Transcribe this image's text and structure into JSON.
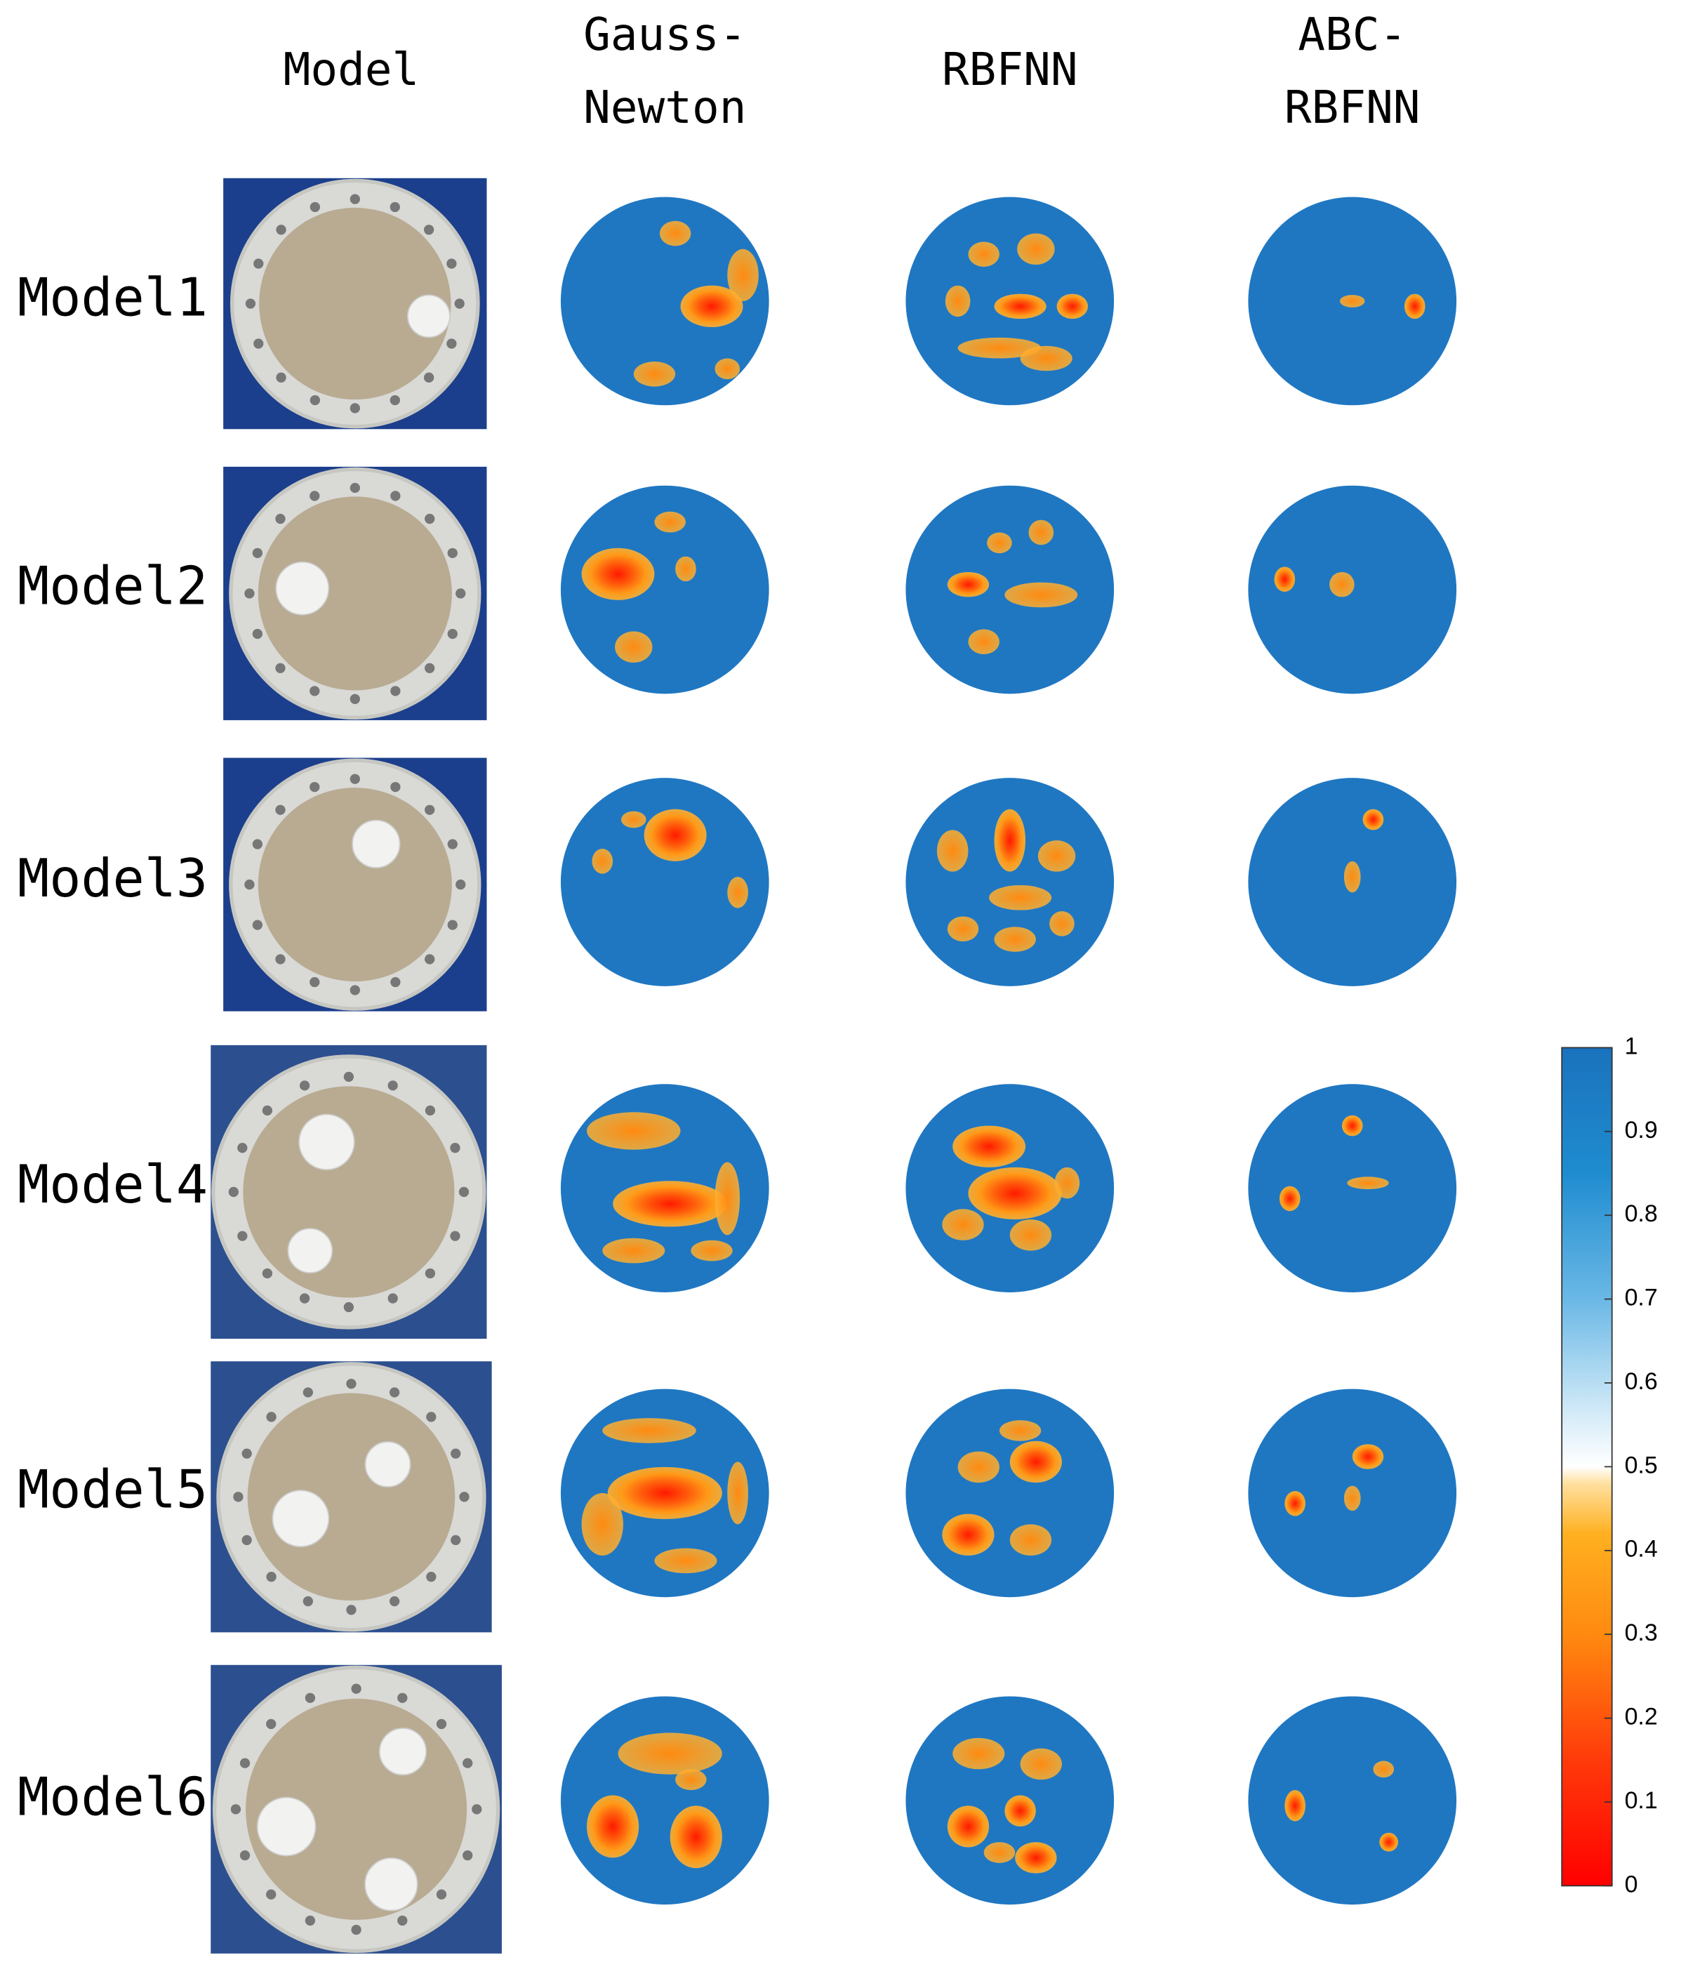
{
  "headers": [
    [
      "Model"
    ],
    [
      "Gauss-",
      "Newton"
    ],
    [
      "RBFNN"
    ],
    [
      "ABC-",
      "RBFNN"
    ]
  ],
  "rows": [
    "Model1",
    "Model2",
    "Model3",
    "Model4",
    "Model5",
    "Model6"
  ],
  "colorbar": {
    "lim": [
      0,
      1
    ],
    "ticks": [
      0,
      0.1,
      0.2,
      0.3,
      0.4,
      0.5,
      0.6,
      0.7,
      0.8,
      0.9,
      1
    ]
  }
}
